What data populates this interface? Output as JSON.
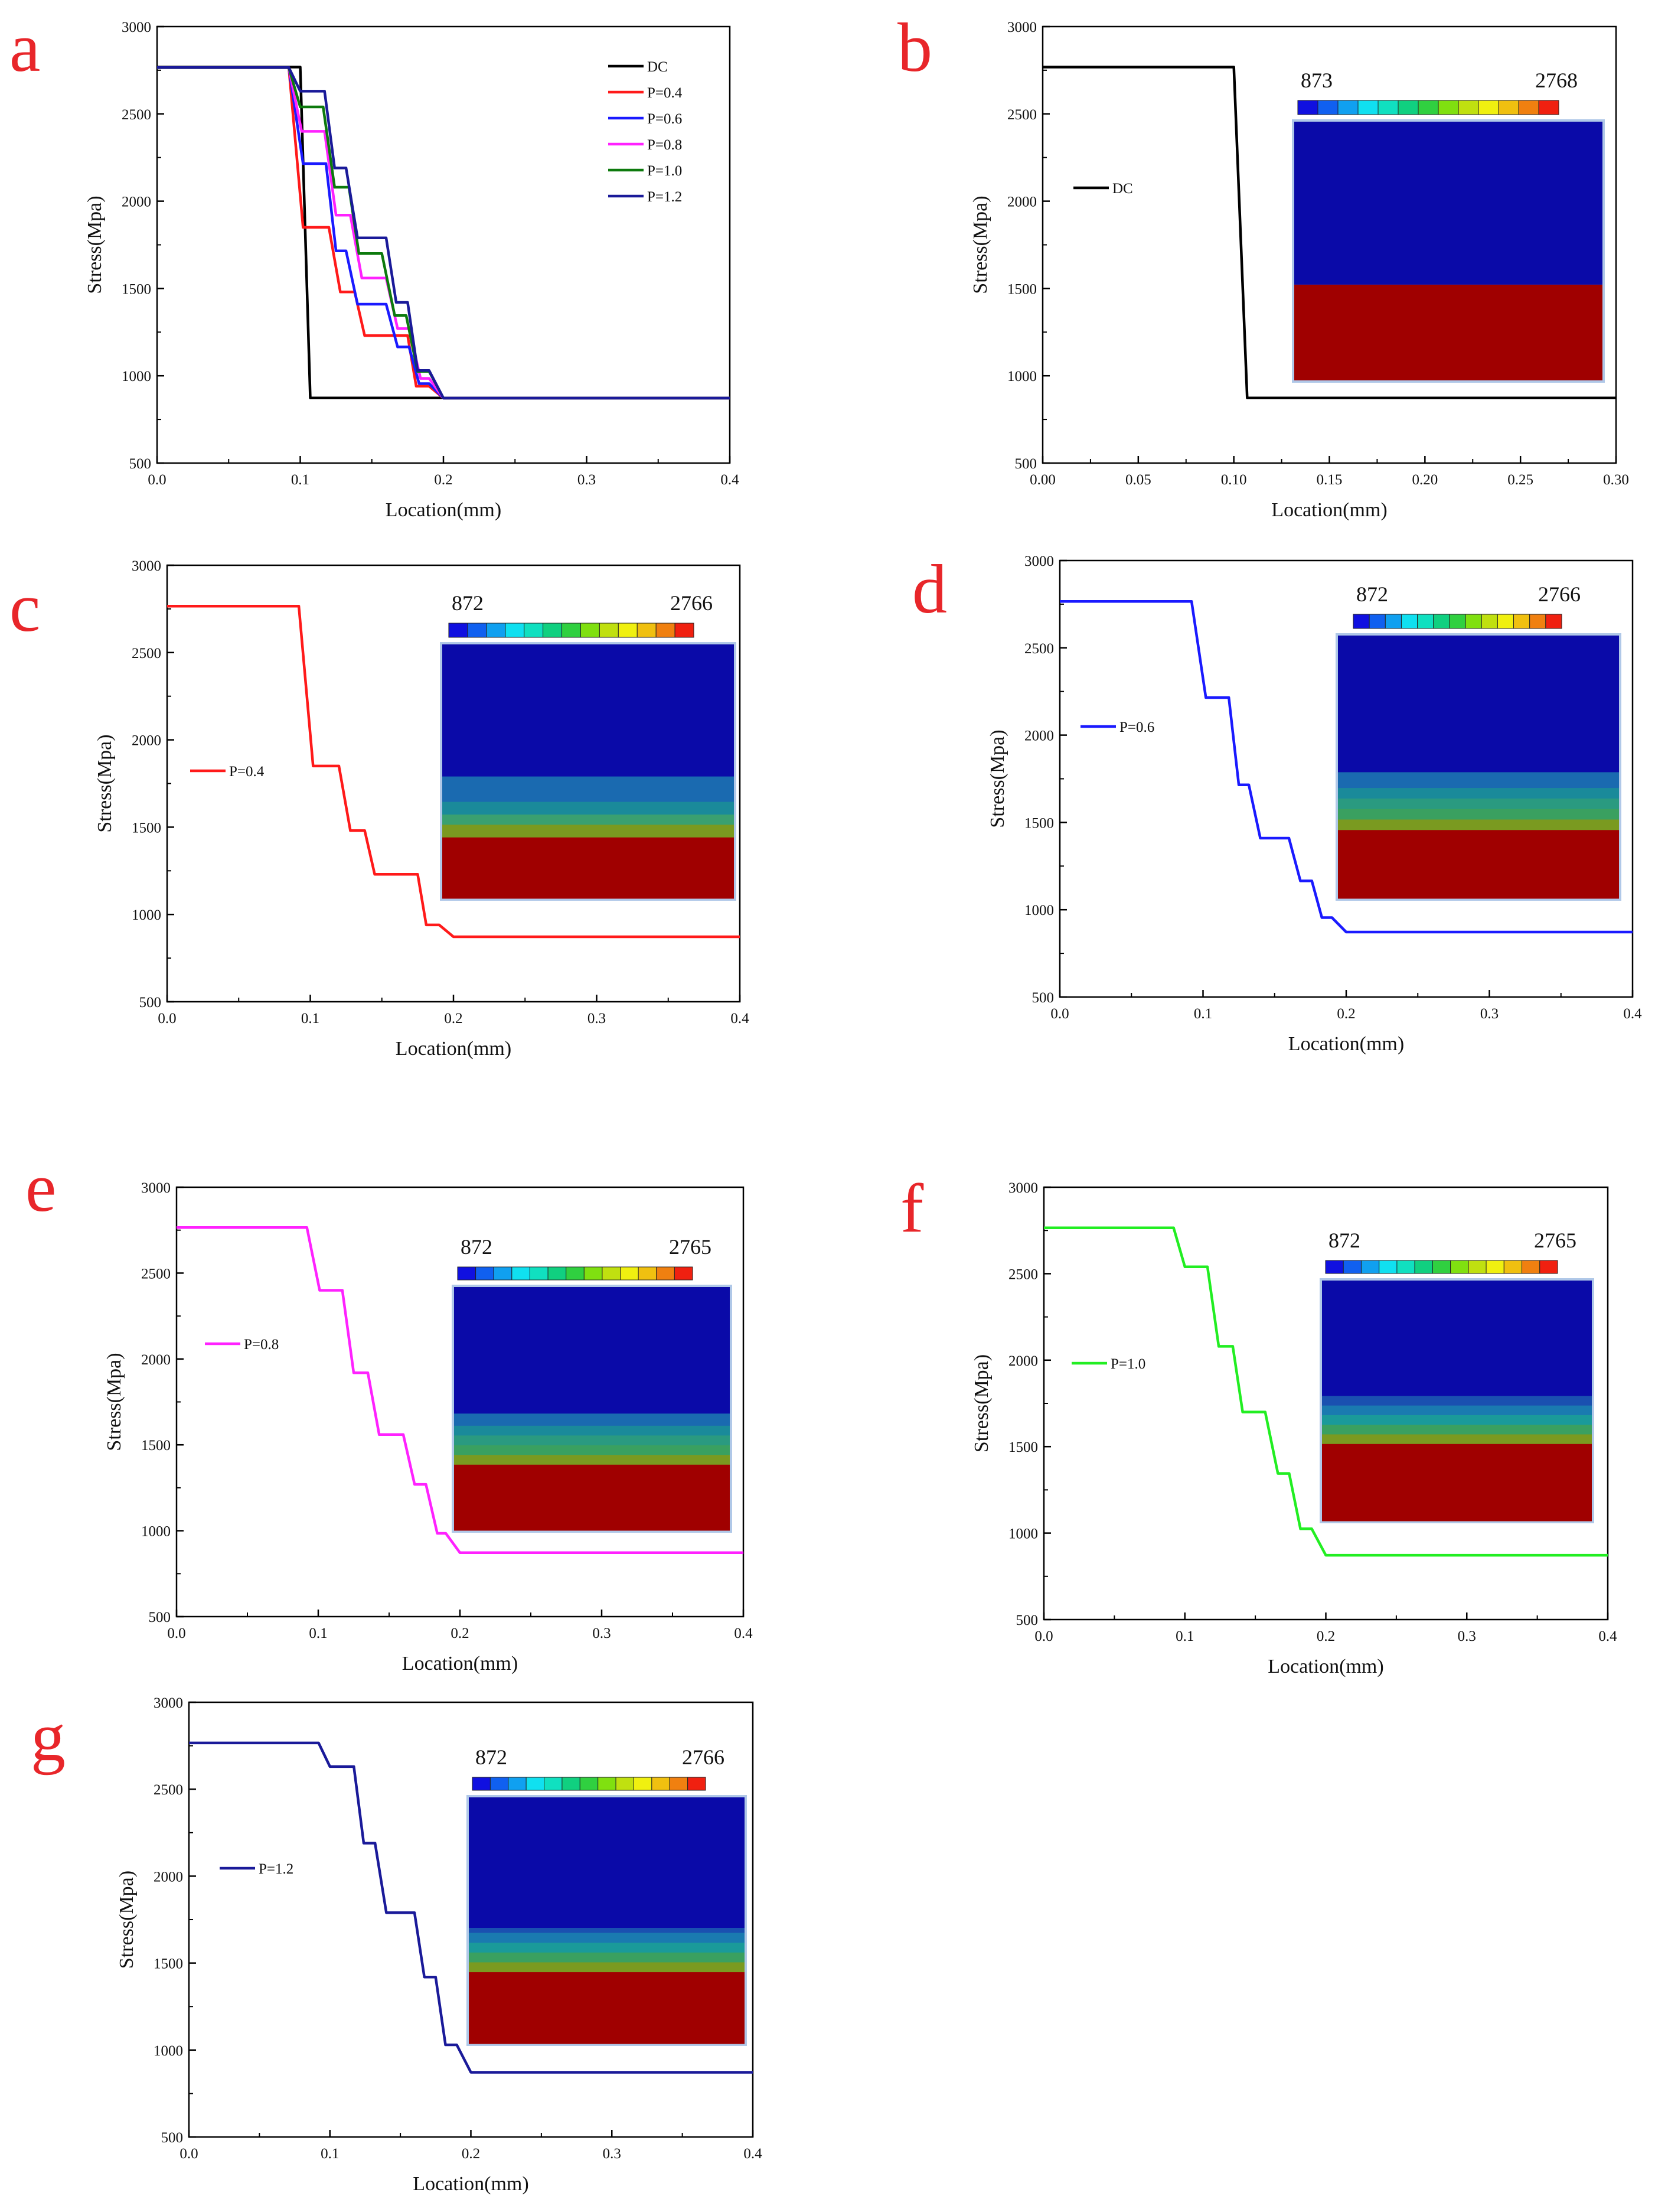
{
  "chart_data": [
    {
      "panel": "a",
      "type": "line",
      "xlabel": "Location(mm)",
      "ylabel": "Stress(Mpa)",
      "xlim": [
        0,
        0.4
      ],
      "ylim": [
        500,
        3000
      ],
      "xticks": [
        "0.0",
        "0.1",
        "0.2",
        "0.3",
        "0.4"
      ],
      "yticks": [
        "500",
        "1000",
        "1500",
        "2000",
        "2500",
        "3000"
      ],
      "legend_position": "top-right",
      "series": [
        {
          "name": "DC",
          "color": "#000000",
          "x": [
            0,
            0.1,
            0.107,
            0.4
          ],
          "y": [
            2768,
            2768,
            873,
            873
          ]
        },
        {
          "name": "P=0.4",
          "color": "#ff1a1a",
          "x": [
            0,
            0.092,
            0.102,
            0.12,
            0.128,
            0.138,
            0.145,
            0.175,
            0.181,
            0.19,
            0.2,
            0.4
          ],
          "y": [
            2766,
            2766,
            1850,
            1850,
            1480,
            1480,
            1230,
            1230,
            940,
            940,
            872,
            872
          ]
        },
        {
          "name": "P=0.6",
          "color": "#1a1aff",
          "x": [
            0,
            0.092,
            0.102,
            0.118,
            0.125,
            0.132,
            0.14,
            0.16,
            0.168,
            0.176,
            0.183,
            0.19,
            0.2,
            0.4
          ],
          "y": [
            2766,
            2766,
            2215,
            2215,
            1715,
            1715,
            1410,
            1410,
            1165,
            1165,
            955,
            955,
            872,
            872
          ]
        },
        {
          "name": "P=0.8",
          "color": "#ff22ff",
          "x": [
            0,
            0.092,
            0.101,
            0.117,
            0.125,
            0.135,
            0.143,
            0.16,
            0.168,
            0.176,
            0.184,
            0.19,
            0.2,
            0.4
          ],
          "y": [
            2765,
            2765,
            2400,
            2400,
            1920,
            1920,
            1560,
            1560,
            1270,
            1270,
            985,
            985,
            872,
            872
          ]
        },
        {
          "name": "P=1.0",
          "color": "#0d7a0d",
          "x": [
            0,
            0.092,
            0.1,
            0.116,
            0.124,
            0.134,
            0.141,
            0.157,
            0.166,
            0.174,
            0.182,
            0.19,
            0.2,
            0.4
          ],
          "y": [
            2765,
            2765,
            2540,
            2540,
            2080,
            2080,
            1700,
            1700,
            1345,
            1345,
            1025,
            1025,
            872,
            872
          ]
        },
        {
          "name": "P=1.2",
          "color": "#1a1a99",
          "x": [
            0,
            0.092,
            0.1,
            0.117,
            0.124,
            0.132,
            0.14,
            0.16,
            0.167,
            0.175,
            0.182,
            0.19,
            0.2,
            0.4
          ],
          "y": [
            2766,
            2766,
            2630,
            2630,
            2190,
            2190,
            1790,
            1790,
            1420,
            1420,
            1030,
            1030,
            872,
            872
          ]
        }
      ]
    },
    {
      "panel": "b",
      "type": "line",
      "xlabel": "Location(mm)",
      "ylabel": "Stress(Mpa)",
      "xlim": [
        0,
        0.3
      ],
      "ylim": [
        500,
        3000
      ],
      "xticks": [
        "0.00",
        "0.05",
        "0.10",
        "0.15",
        "0.20",
        "0.25",
        "0.30"
      ],
      "yticks": [
        "500",
        "1000",
        "1500",
        "2000",
        "2500",
        "3000"
      ],
      "legend_position": "upper-left",
      "series": [
        {
          "name": "DC",
          "color": "#000000",
          "x": [
            0,
            0.1,
            0.107,
            0.3
          ],
          "y": [
            2768,
            2768,
            873,
            873
          ]
        }
      ],
      "inset": {
        "colorbar_min": "873",
        "colorbar_max": "2768",
        "bands": [
          "#0a0aa8",
          "#a00000"
        ]
      }
    },
    {
      "panel": "c",
      "type": "line",
      "xlabel": "Location(mm)",
      "ylabel": "Stress(Mpa)",
      "xlim": [
        0,
        0.4
      ],
      "ylim": [
        500,
        3000
      ],
      "xticks": [
        "0.0",
        "0.1",
        "0.2",
        "0.3",
        "0.4"
      ],
      "yticks": [
        "500",
        "1000",
        "1500",
        "2000",
        "2500",
        "3000"
      ],
      "legend_position": "middle-left",
      "series": [
        {
          "name": "P=0.4",
          "color": "#ff1a1a",
          "x": [
            0,
            0.092,
            0.102,
            0.12,
            0.128,
            0.138,
            0.145,
            0.175,
            0.181,
            0.19,
            0.2,
            0.4
          ],
          "y": [
            2766,
            2766,
            1850,
            1850,
            1480,
            1480,
            1230,
            1230,
            940,
            940,
            872,
            872
          ]
        }
      ],
      "inset": {
        "colorbar_min": "872",
        "colorbar_max": "2766",
        "bands": [
          "#0a0aa8",
          "#0a0aa8",
          "#0a0aa8",
          "#1a6ab0",
          "#1a8a9a",
          "#3aa070",
          "#7a9a20",
          "#a00000",
          "#a00000",
          "#a00000"
        ]
      }
    },
    {
      "panel": "d",
      "type": "line",
      "xlabel": "Location(mm)",
      "ylabel": "Stress(Mpa)",
      "xlim": [
        0,
        0.4
      ],
      "ylim": [
        500,
        3000
      ],
      "xticks": [
        "0.0",
        "0.1",
        "0.2",
        "0.3",
        "0.4"
      ],
      "yticks": [
        "500",
        "1000",
        "1500",
        "2000",
        "2500",
        "3000"
      ],
      "legend_position": "upper-left",
      "series": [
        {
          "name": "P=0.6",
          "color": "#1a1aff",
          "x": [
            0,
            0.092,
            0.102,
            0.118,
            0.125,
            0.132,
            0.14,
            0.16,
            0.168,
            0.176,
            0.183,
            0.19,
            0.2,
            0.4
          ],
          "y": [
            2766,
            2766,
            2215,
            2215,
            1715,
            1715,
            1410,
            1410,
            1165,
            1165,
            955,
            955,
            872,
            872
          ]
        }
      ],
      "inset": {
        "colorbar_min": "872",
        "colorbar_max": "2766",
        "bands": [
          "#0a0aa8",
          "#0a0aa8",
          "#0a0aa8",
          "#1a6ab0",
          "#1a8a9a",
          "#2a9a80",
          "#3aa060",
          "#7a9a20",
          "#a00000",
          "#a00000"
        ]
      }
    },
    {
      "panel": "e",
      "type": "line",
      "xlabel": "Location(mm)",
      "ylabel": "Stress(Mpa)",
      "xlim": [
        0,
        0.4
      ],
      "ylim": [
        500,
        3000
      ],
      "xticks": [
        "0.0",
        "0.1",
        "0.2",
        "0.3",
        "0.4"
      ],
      "yticks": [
        "500",
        "1000",
        "1500",
        "2000",
        "2500",
        "3000"
      ],
      "legend_position": "upper-left",
      "series": [
        {
          "name": "P=0.8",
          "color": "#ff22ff",
          "x": [
            0,
            0.092,
            0.101,
            0.117,
            0.125,
            0.135,
            0.143,
            0.16,
            0.168,
            0.176,
            0.184,
            0.19,
            0.2,
            0.4
          ],
          "y": [
            2765,
            2765,
            2400,
            2400,
            1920,
            1920,
            1560,
            1560,
            1270,
            1270,
            985,
            985,
            872,
            872
          ]
        }
      ],
      "inset": {
        "colorbar_min": "872",
        "colorbar_max": "2765",
        "bands": [
          "#0a0aa8",
          "#0a0aa8",
          "#0a0aa8",
          "#1a6ab0",
          "#1a8a9a",
          "#2a9a80",
          "#3aa060",
          "#7a9a20",
          "#a00000",
          "#a00000"
        ]
      }
    },
    {
      "panel": "f",
      "type": "line",
      "xlabel": "Location(mm)",
      "ylabel": "Stress(Mpa)",
      "xlim": [
        0,
        0.4
      ],
      "ylim": [
        500,
        3000
      ],
      "xticks": [
        "0.0",
        "0.1",
        "0.2",
        "0.3",
        "0.4"
      ],
      "yticks": [
        "500",
        "1000",
        "1500",
        "2000",
        "2500",
        "3000"
      ],
      "legend_position": "upper-left",
      "series": [
        {
          "name": "P=1.0",
          "color": "#22ee22",
          "x": [
            0,
            0.092,
            0.1,
            0.116,
            0.124,
            0.134,
            0.141,
            0.157,
            0.166,
            0.174,
            0.182,
            0.19,
            0.2,
            0.4
          ],
          "y": [
            2765,
            2765,
            2540,
            2540,
            2080,
            2080,
            1700,
            1700,
            1345,
            1345,
            1025,
            1025,
            872,
            872
          ]
        }
      ],
      "inset": {
        "colorbar_min": "872",
        "colorbar_max": "2765",
        "bands": [
          "#0a0aa8",
          "#0a0aa8",
          "#0a0aa8",
          "#1a50b0",
          "#1a7ab0",
          "#1a9a9a",
          "#3aa060",
          "#7a9a20",
          "#a00000",
          "#a00000"
        ]
      }
    },
    {
      "panel": "g",
      "type": "line",
      "xlabel": "Location(mm)",
      "ylabel": "Stress(Mpa)",
      "xlim": [
        0,
        0.4
      ],
      "ylim": [
        500,
        3000
      ],
      "xticks": [
        "0.0",
        "0.1",
        "0.2",
        "0.3",
        "0.4"
      ],
      "yticks": [
        "500",
        "1000",
        "1500",
        "2000",
        "2500",
        "3000"
      ],
      "legend_position": "upper-left",
      "series": [
        {
          "name": "P=1.2",
          "color": "#1a1a99",
          "x": [
            0,
            0.092,
            0.1,
            0.117,
            0.124,
            0.132,
            0.14,
            0.16,
            0.167,
            0.175,
            0.182,
            0.19,
            0.2,
            0.4
          ],
          "y": [
            2766,
            2766,
            2630,
            2630,
            2190,
            2190,
            1790,
            1790,
            1420,
            1420,
            1030,
            1030,
            872,
            872
          ]
        }
      ],
      "inset": {
        "colorbar_min": "872",
        "colorbar_max": "2766",
        "bands": [
          "#0a0aa8",
          "#0a0aa8",
          "#0a0aa8",
          "#1a50b0",
          "#1a7ab0",
          "#1a9a9a",
          "#3aa060",
          "#7a9a20",
          "#a00000",
          "#a00000"
        ]
      }
    }
  ],
  "colorbar_colors": [
    "#1010e0",
    "#1060f0",
    "#10a0f0",
    "#10e0f0",
    "#10e0c0",
    "#10d080",
    "#30d040",
    "#80e010",
    "#c0e010",
    "#f0f010",
    "#f0c010",
    "#f08010",
    "#f02010"
  ]
}
